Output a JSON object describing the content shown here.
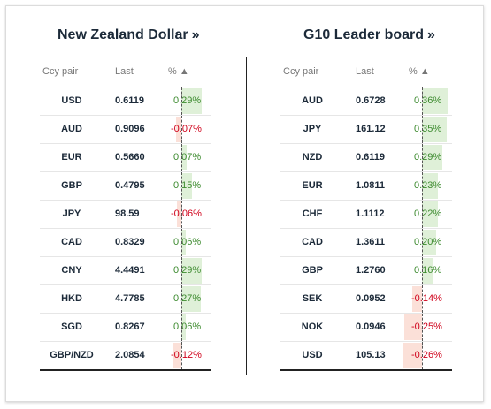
{
  "left": {
    "title": "New Zealand Dollar",
    "title_arrow": "»",
    "columns": {
      "pair": "Ccy pair",
      "last": "Last",
      "pct": "% ▲"
    },
    "rows": [
      {
        "pair": "USD",
        "last": "0.6119",
        "pct": "0.29%",
        "value": 0.29
      },
      {
        "pair": "AUD",
        "last": "0.9096",
        "pct": "-0.07%",
        "value": -0.07
      },
      {
        "pair": "EUR",
        "last": "0.5660",
        "pct": "0.07%",
        "value": 0.07
      },
      {
        "pair": "GBP",
        "last": "0.4795",
        "pct": "0.15%",
        "value": 0.15
      },
      {
        "pair": "JPY",
        "last": "98.59",
        "pct": "-0.06%",
        "value": -0.06
      },
      {
        "pair": "CAD",
        "last": "0.8329",
        "pct": "0.06%",
        "value": 0.06
      },
      {
        "pair": "CNY",
        "last": "4.4491",
        "pct": "0.29%",
        "value": 0.29
      },
      {
        "pair": "HKD",
        "last": "4.7785",
        "pct": "0.27%",
        "value": 0.27
      },
      {
        "pair": "SGD",
        "last": "0.8267",
        "pct": "0.06%",
        "value": 0.06
      },
      {
        "pair": "GBP/NZD",
        "last": "2.0854",
        "pct": "-0.12%",
        "value": -0.12
      }
    ]
  },
  "right": {
    "title": "G10 Leader board",
    "title_arrow": "»",
    "columns": {
      "pair": "Ccy pair",
      "last": "Last",
      "pct": "% ▲"
    },
    "rows": [
      {
        "pair": "AUD",
        "last": "0.6728",
        "pct": "0.36%",
        "value": 0.36
      },
      {
        "pair": "JPY",
        "last": "161.12",
        "pct": "0.35%",
        "value": 0.35
      },
      {
        "pair": "NZD",
        "last": "0.6119",
        "pct": "0.29%",
        "value": 0.29
      },
      {
        "pair": "EUR",
        "last": "1.0811",
        "pct": "0.23%",
        "value": 0.23
      },
      {
        "pair": "CHF",
        "last": "1.1112",
        "pct": "0.22%",
        "value": 0.22
      },
      {
        "pair": "CAD",
        "last": "1.3611",
        "pct": "0.20%",
        "value": 0.2
      },
      {
        "pair": "GBP",
        "last": "1.2760",
        "pct": "0.16%",
        "value": 0.16
      },
      {
        "pair": "SEK",
        "last": "0.0952",
        "pct": "-0.14%",
        "value": -0.14
      },
      {
        "pair": "NOK",
        "last": "0.0946",
        "pct": "-0.25%",
        "value": -0.25
      },
      {
        "pair": "USD",
        "last": "105.13",
        "pct": "-0.26%",
        "value": -0.26
      }
    ]
  },
  "colors": {
    "positive_bar": "#dff0d8",
    "negative_bar": "#fbe0d8",
    "positive_text": "#3c8a2e",
    "negative_text": "#d0021b"
  }
}
